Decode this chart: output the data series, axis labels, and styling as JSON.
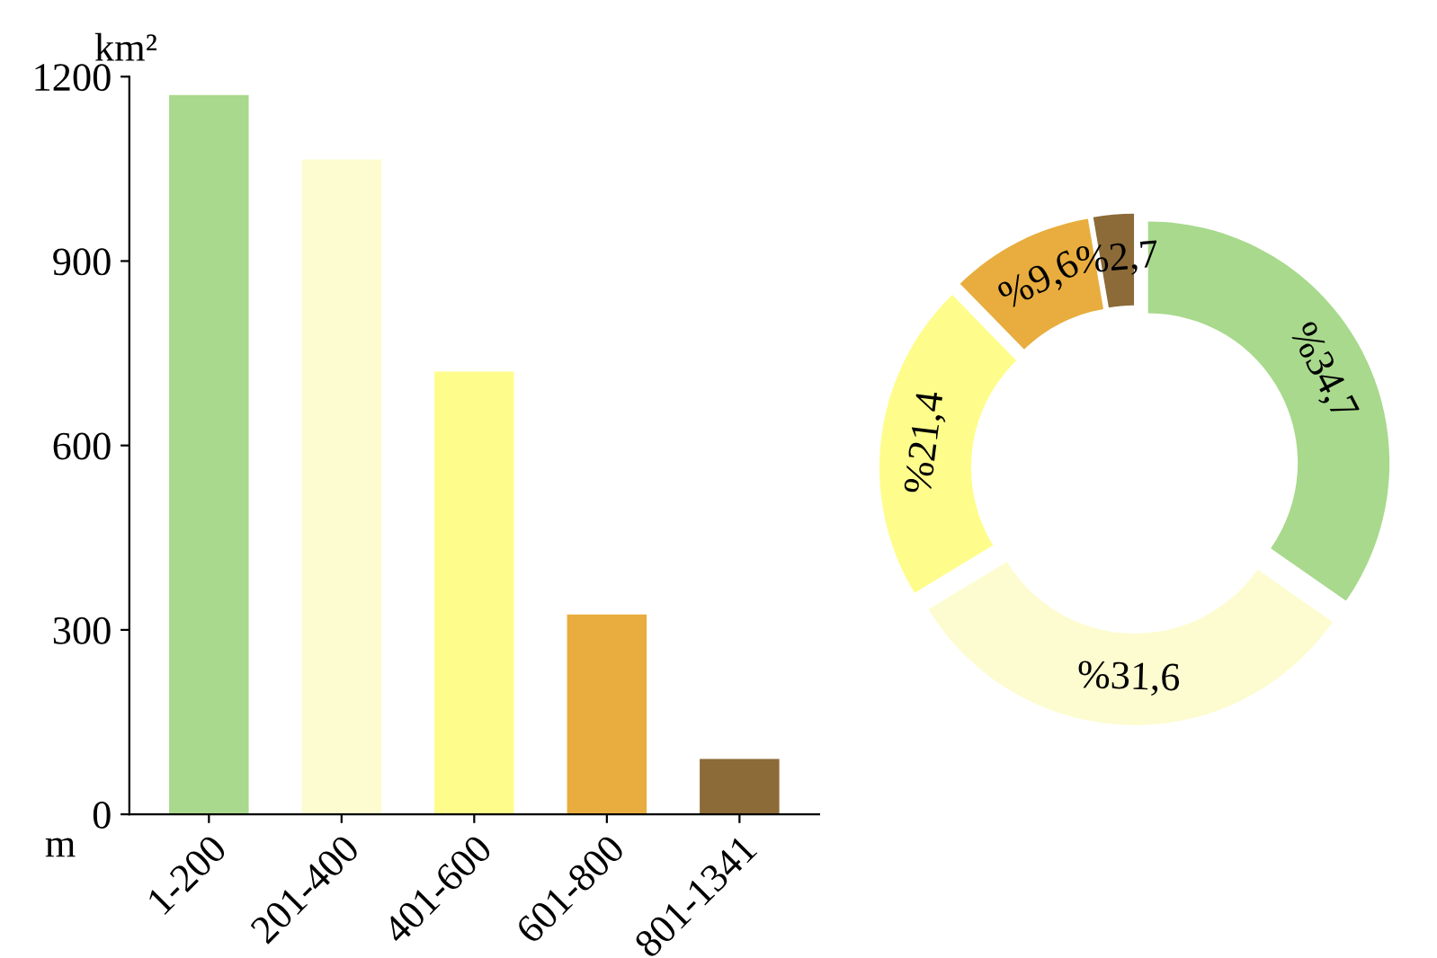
{
  "chart_data": [
    {
      "type": "bar",
      "ylabel": "km²",
      "xlabel": "m",
      "categories": [
        "1-200",
        "201-400",
        "401-600",
        "601-800",
        "801-1341"
      ],
      "values": [
        1170,
        1065,
        720,
        325,
        90
      ],
      "colors": [
        "#a8d98c",
        "#fdfcd0",
        "#fefd8c",
        "#e8ad3e",
        "#8c6b38"
      ],
      "ylim": [
        0,
        1200
      ],
      "yticks": [
        0,
        300,
        600,
        900,
        1200
      ],
      "grid": false,
      "legend": false
    },
    {
      "type": "donut",
      "categories": [
        null,
        null,
        null,
        null,
        null
      ],
      "values": [
        34.7,
        31.6,
        21.4,
        9.6,
        2.7
      ],
      "value_labels": [
        "%34,7",
        "%31,6",
        "%21,4",
        "%9,6",
        "%2,7"
      ],
      "colors": [
        "#a8d98c",
        "#fdfcd0",
        "#fefd8c",
        "#e8ad3e",
        "#8c6b38"
      ],
      "legend": false
    }
  ]
}
